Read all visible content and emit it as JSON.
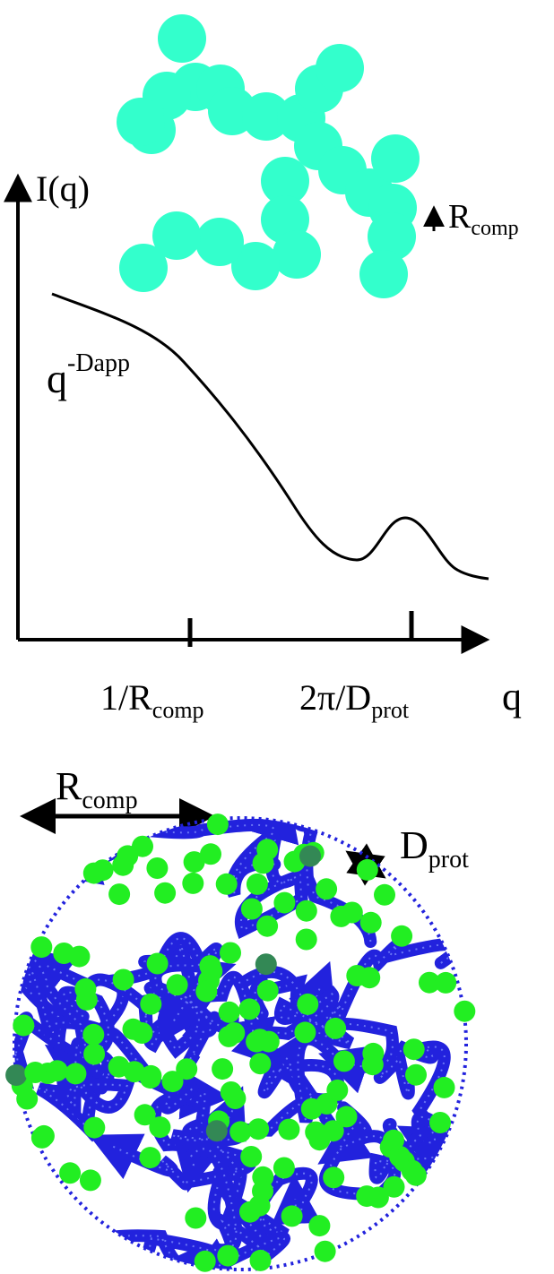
{
  "scattering_plot": {
    "y_axis_label": "I(q)",
    "x_axis_label": "q",
    "slope_label": {
      "base": "q",
      "exponent": "-Dapp"
    },
    "tick_labels": [
      {
        "prefix": "1/R",
        "subscript": "comp"
      },
      {
        "prefix": "2π/D",
        "subscript": "prot"
      }
    ]
  },
  "fractal_chain": {
    "bead_color": "#33ffcc",
    "radius_label": {
      "base": "R",
      "subscript": "comp"
    }
  },
  "complex_sketch": {
    "radius_label": {
      "base": "R",
      "subscript": "comp"
    },
    "protein_label": {
      "base": "D",
      "subscript": "prot"
    },
    "polymer_color": "#2222dd",
    "protein_color": "#22ee22",
    "buried_protein_color": "#338855"
  }
}
